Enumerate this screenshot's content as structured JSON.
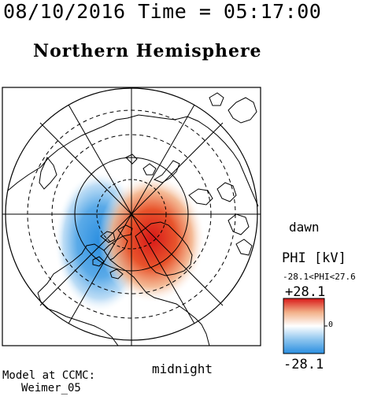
{
  "header": {
    "datetime": "08/10/2016 Time = 05:17:00",
    "hemisphere": "Northern Hemisphere"
  },
  "map": {
    "dawn_label": "dawn",
    "midnight_label": "midnight",
    "pattern": {
      "positive_cell_color": "#d81818",
      "negative_cell_color": "#2a8ee0",
      "background_color": "#ffffff"
    }
  },
  "colorbar": {
    "title": "PHI [kV]",
    "range_text": "-28.1<PHI<27.6",
    "max_label": "+28.1",
    "min_label": "-28.1",
    "zero_label": "0",
    "colors": [
      "#2a8ee0",
      "#8cc4ee",
      "#ffffff",
      "#f2b088",
      "#d81818"
    ]
  },
  "footer": {
    "model_line1": "Model at CCMC:",
    "model_line2": "Weimer_05"
  }
}
